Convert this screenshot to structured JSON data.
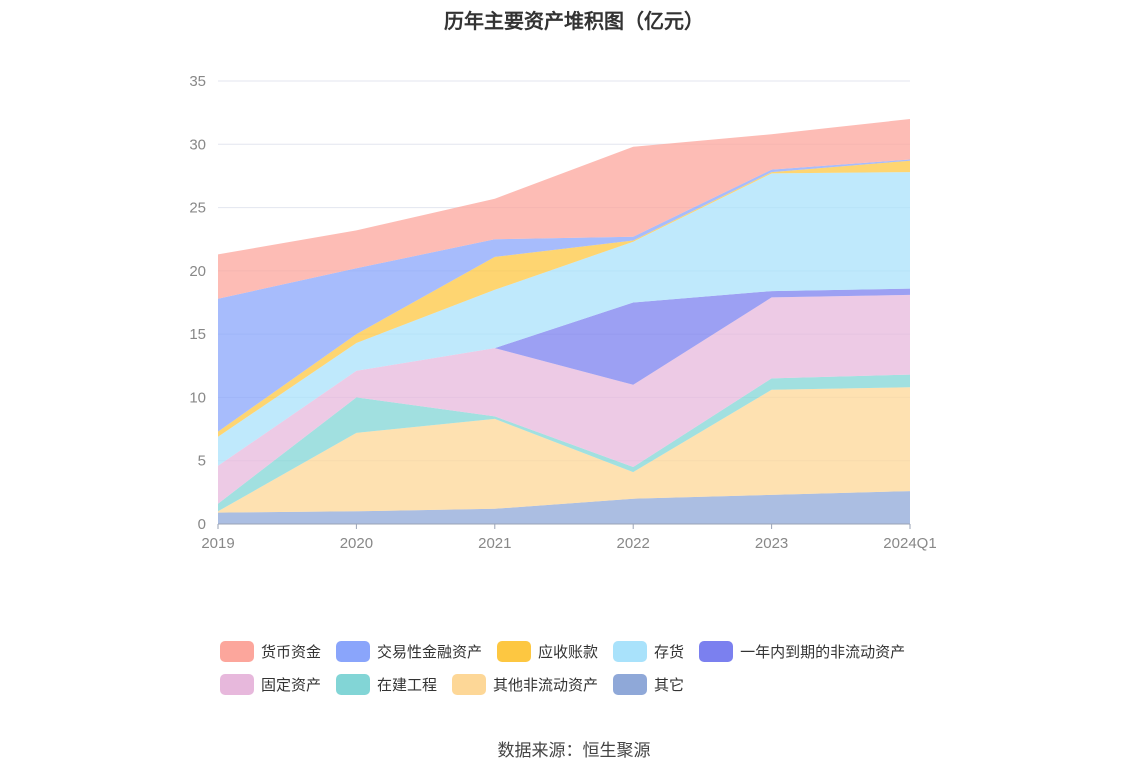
{
  "chart_data": {
    "type": "area",
    "stacked": true,
    "title": "历年主要资产堆积图（亿元）",
    "categories": [
      "2019",
      "2020",
      "2021",
      "2022",
      "2023",
      "2024Q1"
    ],
    "ylim": [
      0,
      35
    ],
    "yticks": [
      "0",
      "5",
      "10",
      "15",
      "20",
      "25",
      "30",
      "35"
    ],
    "grid": true,
    "legend_position": "bottom",
    "series": [
      {
        "name": "其它",
        "color": "#8fa8d8",
        "values": [
          0.9,
          1.0,
          1.2,
          2.0,
          2.3,
          2.6
        ]
      },
      {
        "name": "其他非流动资产",
        "color": "#fdd797",
        "values": [
          0.1,
          6.2,
          7.1,
          2.1,
          8.3,
          8.2
        ]
      },
      {
        "name": "在建工程",
        "color": "#82d5d6",
        "values": [
          0.6,
          2.8,
          0.2,
          0.4,
          0.9,
          1.0
        ]
      },
      {
        "name": "固定资产",
        "color": "#e7b8dc",
        "values": [
          3.0,
          2.1,
          5.4,
          6.5,
          6.4,
          6.3
        ]
      },
      {
        "name": "一年内到期的非流动资产",
        "color": "#7b80ef",
        "values": [
          0,
          0,
          0,
          6.5,
          0.5,
          0.5
        ]
      },
      {
        "name": "存货",
        "color": "#a9e2fb",
        "values": [
          2.3,
          2.2,
          4.6,
          4.8,
          9.3,
          9.2
        ]
      },
      {
        "name": "应收账款",
        "color": "#fdc741",
        "values": [
          0.4,
          0.7,
          2.6,
          0.1,
          0.1,
          0.9
        ]
      },
      {
        "name": "交易性金融资产",
        "color": "#8aa5fb",
        "values": [
          10.5,
          5.2,
          1.4,
          0.3,
          0.2,
          0.1
        ]
      },
      {
        "name": "货币资金",
        "color": "#fca69c",
        "values": [
          3.5,
          3.0,
          3.2,
          7.1,
          2.8,
          3.2
        ]
      }
    ]
  },
  "legend_order": [
    {
      "name": "货币资金",
      "color": "#fca69c"
    },
    {
      "name": "交易性金融资产",
      "color": "#8aa5fb"
    },
    {
      "name": "应收账款",
      "color": "#fdc741"
    },
    {
      "name": "存货",
      "color": "#a9e2fb"
    },
    {
      "name": "一年内到期的非流动资产",
      "color": "#7b80ef"
    },
    {
      "name": "固定资产",
      "color": "#e7b8dc"
    },
    {
      "name": "在建工程",
      "color": "#82d5d6"
    },
    {
      "name": "其他非流动资产",
      "color": "#fdd797"
    },
    {
      "name": "其它",
      "color": "#8fa8d8"
    }
  ],
  "source": "数据来源：恒生聚源"
}
